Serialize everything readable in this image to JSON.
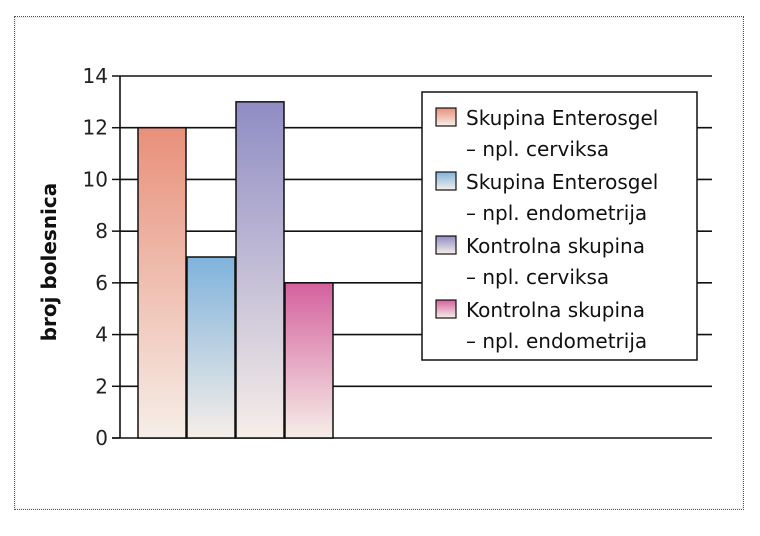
{
  "chart_data": {
    "type": "bar",
    "ylabel": "broj bolesnica",
    "ylim": [
      0,
      14
    ],
    "yticks": [
      "0",
      "2",
      "4",
      "6",
      "8",
      "10",
      "12",
      "14"
    ],
    "categories": [
      ""
    ],
    "series": [
      {
        "name": "Skupina Enterosgel – npl. cerviksa",
        "legend_lines": [
          "Skupina Enterosgel",
          "– npl. cerviksa"
        ],
        "values": [
          12
        ],
        "color": "#e8907a"
      },
      {
        "name": "Skupina Enterosgel – npl. endometrija",
        "legend_lines": [
          "Skupina Enterosgel",
          "– npl. endometrija"
        ],
        "values": [
          7
        ],
        "color": "#7fb3dc"
      },
      {
        "name": "Kontrolna skupina – npl. cerviksa",
        "legend_lines": [
          "Kontrolna skupina",
          "– npl. cerviksa"
        ],
        "values": [
          13
        ],
        "color": "#8f8cc4"
      },
      {
        "name": "Kontrolna skupina – npl. endometrija",
        "legend_lines": [
          "Kontrolna skupina",
          "– npl. endometrija"
        ],
        "values": [
          6
        ],
        "color": "#d4619d"
      }
    ],
    "grid": true,
    "legend_position": "right"
  }
}
